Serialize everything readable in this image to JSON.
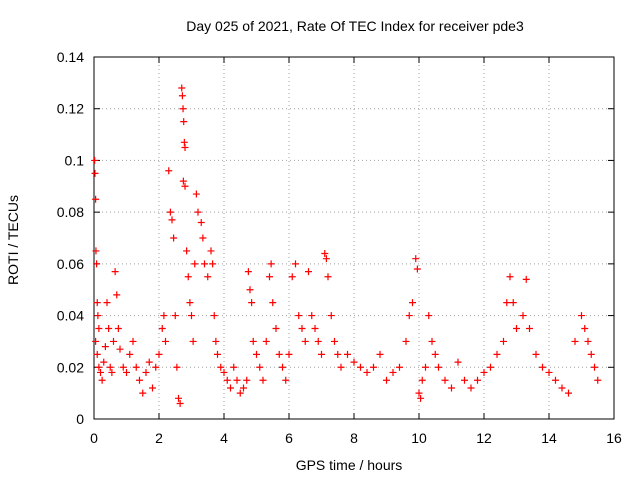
{
  "chart_data": {
    "type": "scatter",
    "title": "Day 025 of 2021, Rate Of TEC Index for receiver pde3",
    "xlabel": "GPS time / hours",
    "ylabel": "ROTI / TECUs",
    "xlim": [
      0,
      16
    ],
    "ylim": [
      0,
      0.14
    ],
    "x_ticks": [
      0,
      2,
      4,
      6,
      8,
      10,
      12,
      14,
      16
    ],
    "y_ticks": [
      0,
      0.02,
      0.04,
      0.06,
      0.08,
      0.1,
      0.12,
      0.14
    ],
    "x_tick_labels": [
      "0",
      "2",
      "4",
      "6",
      "8",
      "10",
      "12",
      "14",
      "16"
    ],
    "y_tick_labels": [
      "0",
      "0.02",
      "0.04",
      "0.06",
      "0.08",
      "0.1",
      "0.12",
      "0.14"
    ],
    "grid": true,
    "marker": "+",
    "color": "#ff0000",
    "series": [
      {
        "name": "ROTI",
        "points": [
          [
            0.02,
            0.1
          ],
          [
            0.03,
            0.095
          ],
          [
            0.05,
            0.085
          ],
          [
            0.06,
            0.065
          ],
          [
            0.08,
            0.06
          ],
          [
            0.1,
            0.045
          ],
          [
            0.12,
            0.04
          ],
          [
            0.15,
            0.035
          ],
          [
            0.05,
            0.03
          ],
          [
            0.1,
            0.025
          ],
          [
            0.15,
            0.02
          ],
          [
            0.2,
            0.018
          ],
          [
            0.25,
            0.015
          ],
          [
            0.3,
            0.022
          ],
          [
            0.35,
            0.028
          ],
          [
            0.4,
            0.045
          ],
          [
            0.45,
            0.035
          ],
          [
            0.5,
            0.02
          ],
          [
            0.55,
            0.018
          ],
          [
            0.6,
            0.03
          ],
          [
            0.65,
            0.057
          ],
          [
            0.7,
            0.048
          ],
          [
            0.75,
            0.035
          ],
          [
            0.8,
            0.027
          ],
          [
            0.9,
            0.02
          ],
          [
            1.0,
            0.018
          ],
          [
            1.1,
            0.025
          ],
          [
            1.2,
            0.03
          ],
          [
            1.3,
            0.02
          ],
          [
            1.4,
            0.015
          ],
          [
            1.5,
            0.01
          ],
          [
            1.6,
            0.018
          ],
          [
            1.7,
            0.022
          ],
          [
            1.8,
            0.012
          ],
          [
            1.9,
            0.02
          ],
          [
            2.0,
            0.025
          ],
          [
            2.1,
            0.035
          ],
          [
            2.15,
            0.04
          ],
          [
            2.2,
            0.03
          ],
          [
            2.3,
            0.096
          ],
          [
            2.35,
            0.08
          ],
          [
            2.4,
            0.077
          ],
          [
            2.45,
            0.07
          ],
          [
            2.5,
            0.04
          ],
          [
            2.55,
            0.02
          ],
          [
            2.6,
            0.008
          ],
          [
            2.65,
            0.006
          ],
          [
            2.7,
            0.128
          ],
          [
            2.72,
            0.125
          ],
          [
            2.74,
            0.12
          ],
          [
            2.76,
            0.115
          ],
          [
            2.78,
            0.107
          ],
          [
            2.8,
            0.105
          ],
          [
            2.75,
            0.092
          ],
          [
            2.8,
            0.09
          ],
          [
            2.85,
            0.065
          ],
          [
            2.9,
            0.055
          ],
          [
            2.95,
            0.045
          ],
          [
            3.0,
            0.04
          ],
          [
            3.05,
            0.03
          ],
          [
            3.1,
            0.06
          ],
          [
            3.15,
            0.087
          ],
          [
            3.2,
            0.08
          ],
          [
            3.3,
            0.076
          ],
          [
            3.35,
            0.07
          ],
          [
            3.4,
            0.06
          ],
          [
            3.5,
            0.055
          ],
          [
            3.6,
            0.065
          ],
          [
            3.65,
            0.06
          ],
          [
            3.7,
            0.04
          ],
          [
            3.75,
            0.03
          ],
          [
            3.8,
            0.025
          ],
          [
            3.9,
            0.02
          ],
          [
            4.0,
            0.018
          ],
          [
            4.1,
            0.015
          ],
          [
            4.2,
            0.012
          ],
          [
            4.3,
            0.02
          ],
          [
            4.4,
            0.015
          ],
          [
            4.5,
            0.01
          ],
          [
            4.6,
            0.012
          ],
          [
            4.7,
            0.015
          ],
          [
            4.75,
            0.057
          ],
          [
            4.8,
            0.05
          ],
          [
            4.85,
            0.045
          ],
          [
            4.9,
            0.03
          ],
          [
            5.0,
            0.025
          ],
          [
            5.1,
            0.02
          ],
          [
            5.2,
            0.015
          ],
          [
            5.3,
            0.03
          ],
          [
            5.4,
            0.055
          ],
          [
            5.45,
            0.06
          ],
          [
            5.5,
            0.045
          ],
          [
            5.6,
            0.035
          ],
          [
            5.7,
            0.025
          ],
          [
            5.8,
            0.02
          ],
          [
            5.9,
            0.015
          ],
          [
            6.0,
            0.025
          ],
          [
            6.1,
            0.055
          ],
          [
            6.2,
            0.06
          ],
          [
            6.3,
            0.04
          ],
          [
            6.4,
            0.035
          ],
          [
            6.5,
            0.03
          ],
          [
            6.6,
            0.057
          ],
          [
            6.7,
            0.04
          ],
          [
            6.8,
            0.035
          ],
          [
            6.9,
            0.03
          ],
          [
            7.0,
            0.025
          ],
          [
            7.1,
            0.064
          ],
          [
            7.15,
            0.062
          ],
          [
            7.2,
            0.055
          ],
          [
            7.3,
            0.04
          ],
          [
            7.4,
            0.03
          ],
          [
            7.5,
            0.025
          ],
          [
            7.6,
            0.02
          ],
          [
            7.8,
            0.025
          ],
          [
            8.0,
            0.022
          ],
          [
            8.2,
            0.02
          ],
          [
            8.4,
            0.018
          ],
          [
            8.6,
            0.02
          ],
          [
            8.8,
            0.025
          ],
          [
            9.0,
            0.015
          ],
          [
            9.2,
            0.018
          ],
          [
            9.4,
            0.02
          ],
          [
            9.6,
            0.03
          ],
          [
            9.7,
            0.04
          ],
          [
            9.8,
            0.045
          ],
          [
            9.9,
            0.062
          ],
          [
            9.95,
            0.058
          ],
          [
            10.0,
            0.01
          ],
          [
            10.05,
            0.008
          ],
          [
            10.1,
            0.015
          ],
          [
            10.2,
            0.02
          ],
          [
            10.3,
            0.04
          ],
          [
            10.4,
            0.03
          ],
          [
            10.5,
            0.025
          ],
          [
            10.6,
            0.02
          ],
          [
            10.8,
            0.015
          ],
          [
            11.0,
            0.012
          ],
          [
            11.2,
            0.022
          ],
          [
            11.4,
            0.015
          ],
          [
            11.6,
            0.012
          ],
          [
            11.8,
            0.015
          ],
          [
            12.0,
            0.018
          ],
          [
            12.2,
            0.02
          ],
          [
            12.4,
            0.025
          ],
          [
            12.6,
            0.03
          ],
          [
            12.7,
            0.045
          ],
          [
            12.8,
            0.055
          ],
          [
            12.9,
            0.045
          ],
          [
            13.0,
            0.035
          ],
          [
            13.2,
            0.04
          ],
          [
            13.3,
            0.054
          ],
          [
            13.4,
            0.035
          ],
          [
            13.6,
            0.025
          ],
          [
            13.8,
            0.02
          ],
          [
            14.0,
            0.018
          ],
          [
            14.2,
            0.015
          ],
          [
            14.4,
            0.012
          ],
          [
            14.6,
            0.01
          ],
          [
            14.8,
            0.03
          ],
          [
            15.0,
            0.04
          ],
          [
            15.1,
            0.035
          ],
          [
            15.2,
            0.03
          ],
          [
            15.3,
            0.025
          ],
          [
            15.4,
            0.02
          ],
          [
            15.5,
            0.015
          ]
        ]
      }
    ]
  }
}
